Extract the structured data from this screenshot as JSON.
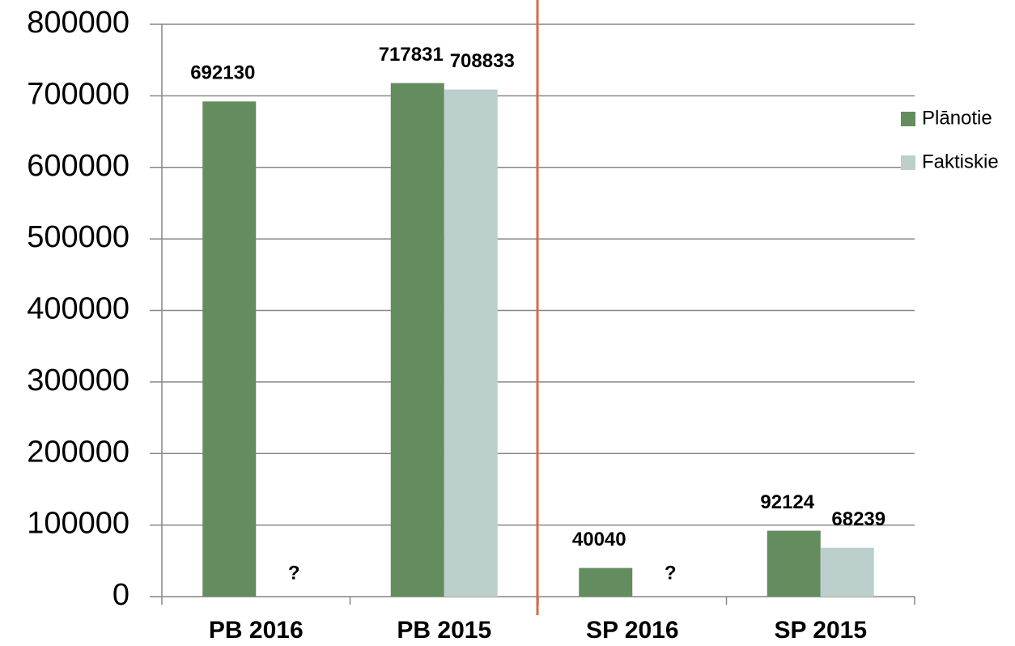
{
  "chart_data": {
    "type": "bar",
    "categories": [
      "PB 2016",
      "PB 2015",
      "SP 2016",
      "SP 2015"
    ],
    "series": [
      {
        "name": "Plānotie",
        "color": "#638c5f",
        "values": [
          692130,
          717831,
          40040,
          92124
        ]
      },
      {
        "name": "Faktiskie",
        "color": "#bccfcd",
        "values": [
          null,
          708833,
          null,
          68239
        ],
        "value_labels": [
          "?",
          "708833",
          "?",
          "68239"
        ]
      }
    ],
    "ylim": [
      0,
      800000
    ],
    "yticks": [
      0,
      100000,
      200000,
      300000,
      400000,
      500000,
      600000,
      700000,
      800000
    ],
    "grid": true,
    "legend": "right"
  }
}
